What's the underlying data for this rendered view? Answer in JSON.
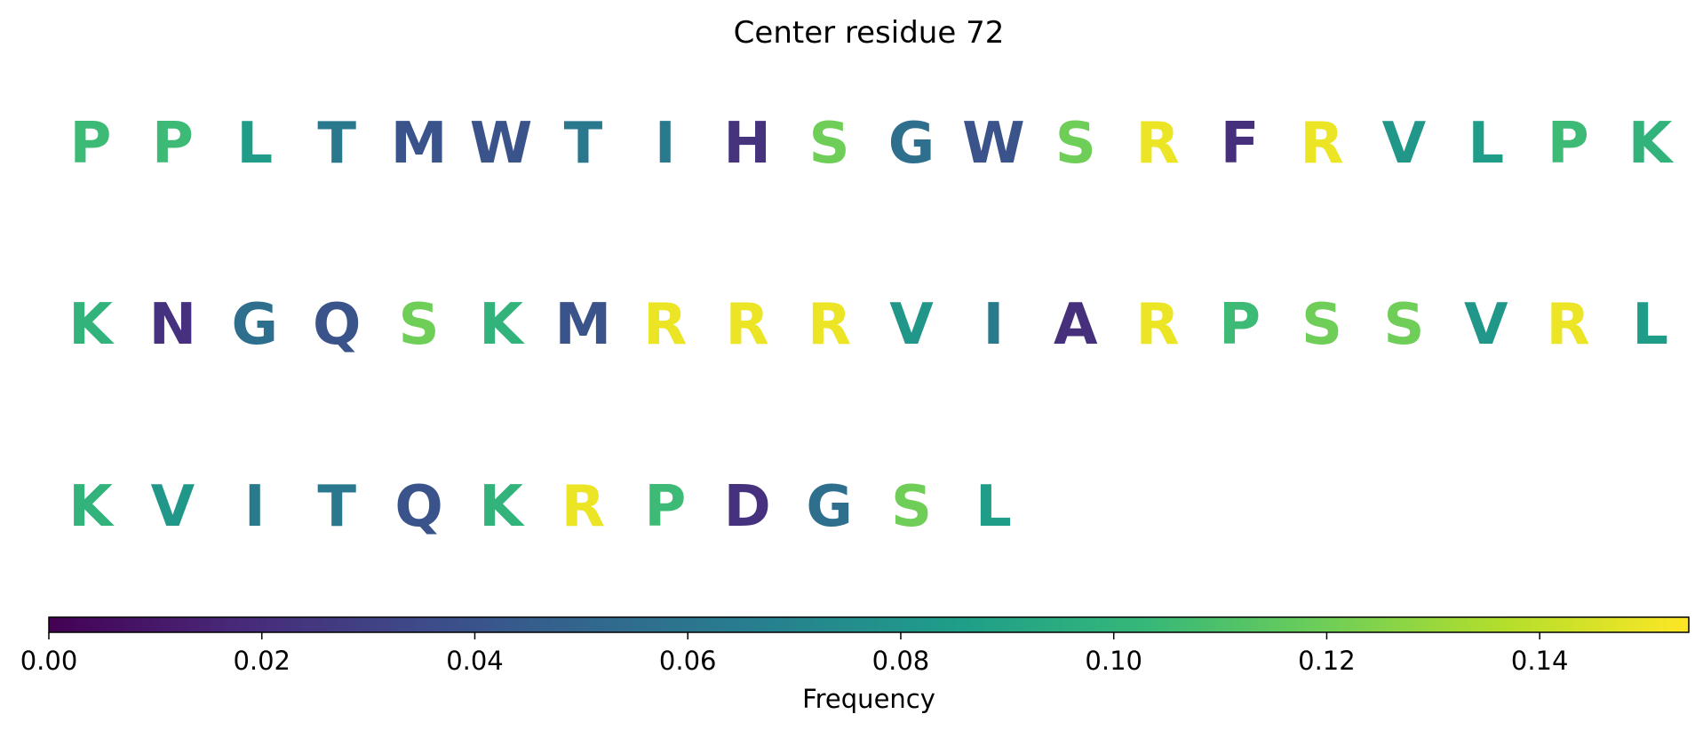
{
  "chart_data": {
    "type": "sequence-heatmap",
    "title": "Center residue 72",
    "residues": [
      {
        "letter": "P",
        "value": 0.105
      },
      {
        "letter": "P",
        "value": 0.105
      },
      {
        "letter": "L",
        "value": 0.085
      },
      {
        "letter": "T",
        "value": 0.062
      },
      {
        "letter": "M",
        "value": 0.04
      },
      {
        "letter": "W",
        "value": 0.04
      },
      {
        "letter": "T",
        "value": 0.062
      },
      {
        "letter": "I",
        "value": 0.063
      },
      {
        "letter": "H",
        "value": 0.023
      },
      {
        "letter": "S",
        "value": 0.12
      },
      {
        "letter": "G",
        "value": 0.056
      },
      {
        "letter": "W",
        "value": 0.04
      },
      {
        "letter": "S",
        "value": 0.12
      },
      {
        "letter": "R",
        "value": 0.15
      },
      {
        "letter": "F",
        "value": 0.021
      },
      {
        "letter": "R",
        "value": 0.15
      },
      {
        "letter": "V",
        "value": 0.081
      },
      {
        "letter": "L",
        "value": 0.085
      },
      {
        "letter": "P",
        "value": 0.105
      },
      {
        "letter": "K",
        "value": 0.1
      },
      {
        "letter": "K",
        "value": 0.1
      },
      {
        "letter": "N",
        "value": 0.022
      },
      {
        "letter": "G",
        "value": 0.056
      },
      {
        "letter": "Q",
        "value": 0.04
      },
      {
        "letter": "S",
        "value": 0.12
      },
      {
        "letter": "K",
        "value": 0.1
      },
      {
        "letter": "M",
        "value": 0.04
      },
      {
        "letter": "R",
        "value": 0.15
      },
      {
        "letter": "R",
        "value": 0.15
      },
      {
        "letter": "R",
        "value": 0.15
      },
      {
        "letter": "V",
        "value": 0.081
      },
      {
        "letter": "I",
        "value": 0.063
      },
      {
        "letter": "A",
        "value": 0.021
      },
      {
        "letter": "R",
        "value": 0.15
      },
      {
        "letter": "P",
        "value": 0.105
      },
      {
        "letter": "S",
        "value": 0.12
      },
      {
        "letter": "S",
        "value": 0.12
      },
      {
        "letter": "V",
        "value": 0.081
      },
      {
        "letter": "R",
        "value": 0.15
      },
      {
        "letter": "L",
        "value": 0.085
      },
      {
        "letter": "K",
        "value": 0.1
      },
      {
        "letter": "V",
        "value": 0.081
      },
      {
        "letter": "I",
        "value": 0.063
      },
      {
        "letter": "T",
        "value": 0.062
      },
      {
        "letter": "Q",
        "value": 0.04
      },
      {
        "letter": "K",
        "value": 0.1
      },
      {
        "letter": "R",
        "value": 0.15
      },
      {
        "letter": "P",
        "value": 0.105
      },
      {
        "letter": "D",
        "value": 0.022
      },
      {
        "letter": "G",
        "value": 0.056
      },
      {
        "letter": "S",
        "value": 0.12
      },
      {
        "letter": "L",
        "value": 0.085
      }
    ],
    "colorbar": {
      "label": "Frequency",
      "colormap": "viridis",
      "range": [
        0.0,
        0.154
      ],
      "ticks": [
        "0.00",
        "0.02",
        "0.04",
        "0.06",
        "0.08",
        "0.10",
        "0.12",
        "0.14"
      ]
    }
  }
}
